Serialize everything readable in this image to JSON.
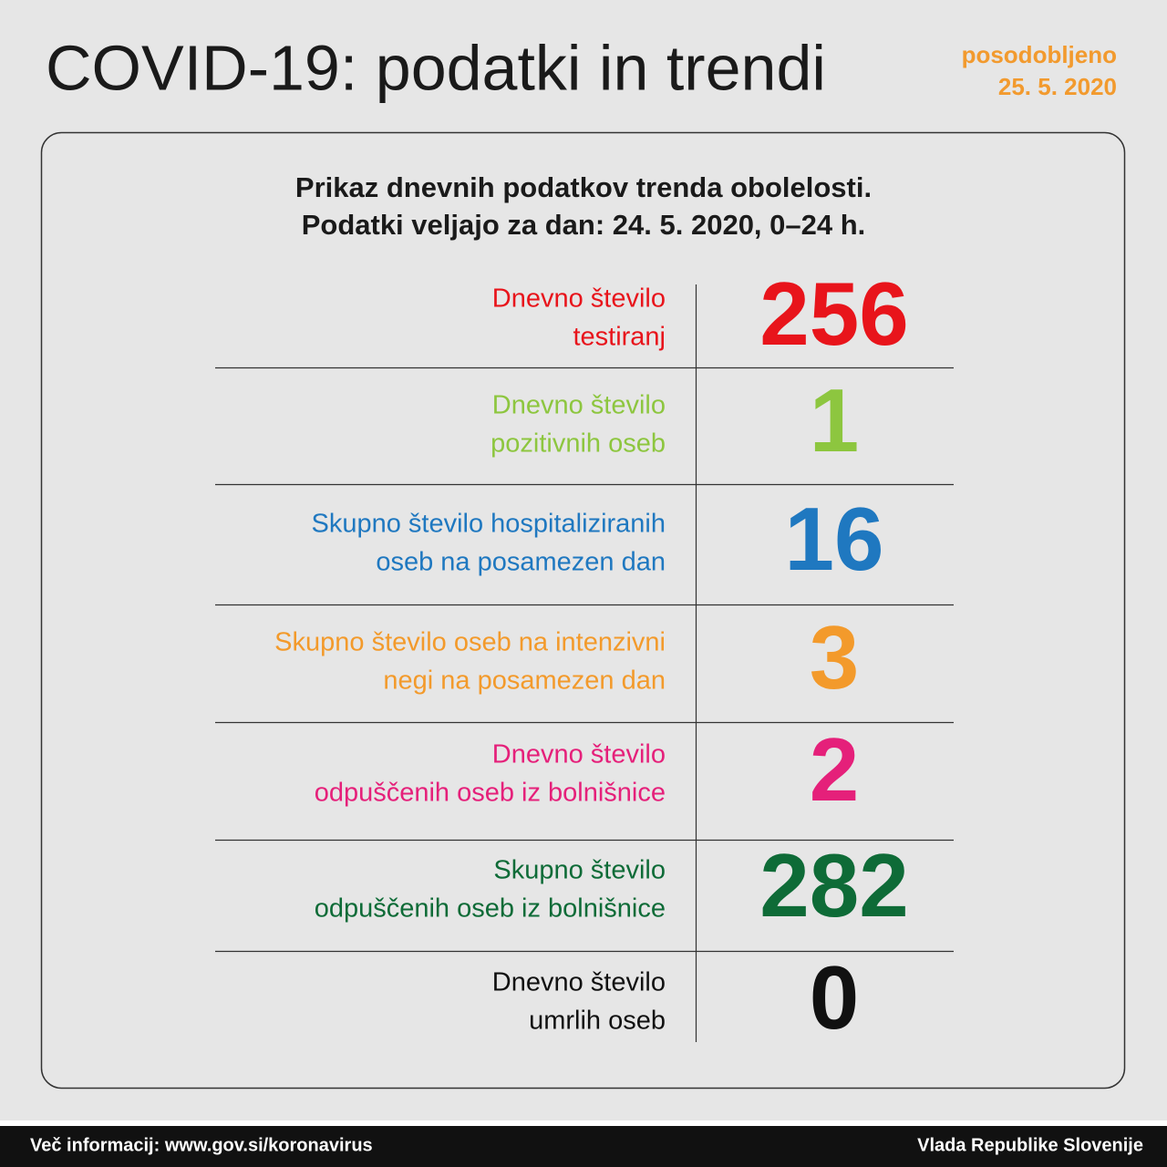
{
  "header": {
    "title": "COVID-19: podatki in trendi",
    "updated_label": "posodobljeno",
    "updated_date": "25. 5. 2020"
  },
  "panel": {
    "subtitle": [
      "Prikaz dnevnih podatkov trenda obolelosti.",
      "Podatki veljajo za dan: 24. 5. 2020, 0–24 h."
    ],
    "rows": [
      {
        "label": [
          "Dnevno število",
          "testiranj"
        ],
        "value": "256",
        "color": "#e8141b"
      },
      {
        "label": [
          "Dnevno število",
          "pozitivnih oseb"
        ],
        "value": "1",
        "color": "#8dc63f"
      },
      {
        "label": [
          "Skupno število hospitaliziranih",
          "oseb na posamezen dan"
        ],
        "value": "16",
        "color": "#1f78c0"
      },
      {
        "label": [
          "Skupno število oseb na intenzivni",
          "negi na posamezen dan"
        ],
        "value": "3",
        "color": "#f39a2b"
      },
      {
        "label": [
          "Dnevno število",
          "odpuščenih oseb iz bolnišnice"
        ],
        "value": "2",
        "color": "#e5207a"
      },
      {
        "label": [
          "Skupno število",
          "odpuščenih oseb iz bolnišnice"
        ],
        "value": "282",
        "color": "#0e6b37"
      },
      {
        "label": [
          "Dnevno število",
          "umrlih oseb"
        ],
        "value": "0",
        "color": "#111111"
      }
    ]
  },
  "footer": {
    "left": "Več informacij: www.gov.si/koronavirus",
    "right": "Vlada Republike Slovenije"
  }
}
